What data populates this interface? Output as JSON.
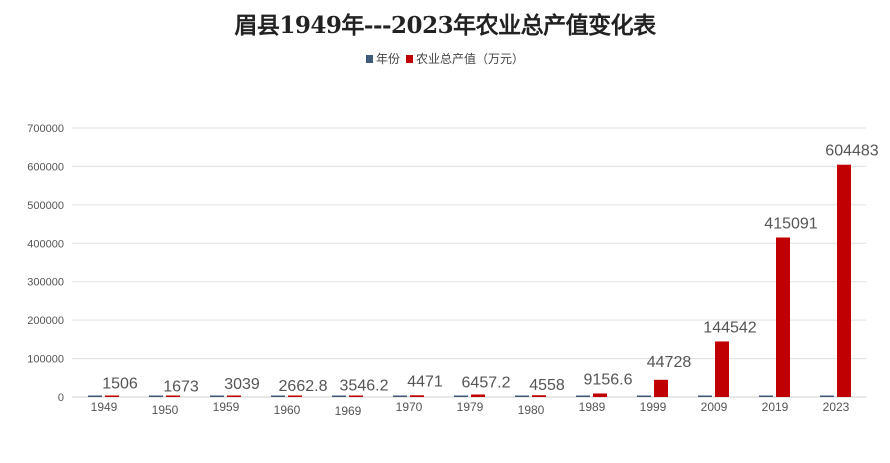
{
  "chart_data": {
    "type": "bar",
    "title": "眉县1949年---2023年农业总产值变化表",
    "categories": [
      "1949",
      "1950",
      "1959",
      "1960",
      "1969",
      "1970",
      "1979",
      "1980",
      "1989",
      "1999",
      "2009",
      "2019",
      "2023"
    ],
    "series": [
      {
        "name": "年份",
        "color": "#3f5a7a",
        "values": [
          1949,
          1950,
          1959,
          1960,
          1969,
          1970,
          1979,
          1980,
          1989,
          1999,
          2009,
          2019,
          2023
        ]
      },
      {
        "name": "农业总产值（万元）",
        "color": "#c00000",
        "values": [
          1506,
          1673,
          3039,
          2662.8,
          3546.2,
          4471,
          6457.2,
          4558,
          9156.6,
          44728,
          144542,
          415091,
          604483
        ],
        "data_labels": [
          "1506",
          "1673",
          "3039",
          "2662.8",
          "3546.2",
          "4471",
          "6457.2",
          "4558",
          "9156.6",
          "44728",
          "144542",
          "415091",
          "604483"
        ]
      }
    ],
    "ylim": [
      0,
      700000
    ],
    "yticks": [
      "0",
      "100000",
      "200000",
      "300000",
      "400000",
      "500000",
      "600000",
      "700000"
    ],
    "grid": true,
    "legend_position": "top"
  }
}
